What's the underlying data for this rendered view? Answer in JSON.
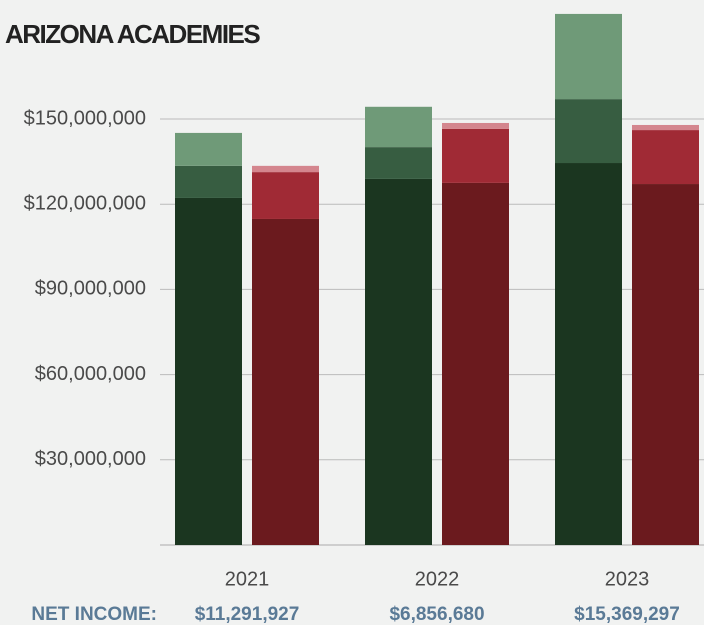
{
  "chart_data": {
    "type": "stacked_bar",
    "title": "ARIZONA ACADEMIES",
    "categories": [
      "2021",
      "2022",
      "2023"
    ],
    "stacks": [
      {
        "series": [
          {
            "color": "#1b3620",
            "values": [
              122200000,
              128900000,
              134500000
            ]
          },
          {
            "color": "#375d41",
            "values": [
              11300000,
              11200000,
              22500000
            ]
          },
          {
            "color": "#6f9a78",
            "values": [
              11600000,
              14200000,
              30000000
            ]
          }
        ]
      },
      {
        "series": [
          {
            "color": "#6b1a1e",
            "values": [
              114800000,
              127500000,
              127100000
            ]
          },
          {
            "color": "#a02a35",
            "values": [
              16500000,
              19000000,
              19000000
            ]
          },
          {
            "color": "#d4868e",
            "values": [
              2200000,
              2100000,
              1800000
            ]
          }
        ]
      }
    ],
    "ylim": [
      0,
      190000000
    ],
    "yticks": [
      {
        "value": 30000000,
        "label": "$30,000,000"
      },
      {
        "value": 60000000,
        "label": "$60,000,000"
      },
      {
        "value": 90000000,
        "label": "$90,000,000"
      },
      {
        "value": 120000000,
        "label": "$120,000,000"
      },
      {
        "value": 150000000,
        "label": "$150,000,000"
      }
    ],
    "grid": true,
    "net_income": {
      "label": "NET INCOME:",
      "values": [
        "$11,291,927",
        "$6,856,680",
        "$15,369,297"
      ]
    }
  }
}
